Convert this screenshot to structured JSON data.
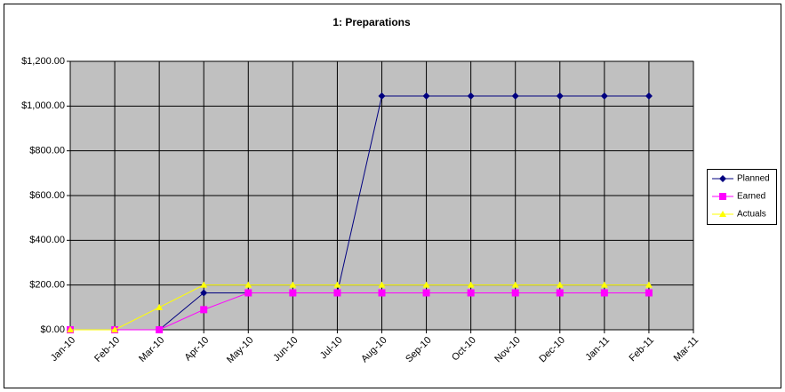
{
  "chart_data": {
    "type": "line",
    "title": "1: Preparations",
    "categories": [
      "Jan-10",
      "Feb-10",
      "Mar-10",
      "Apr-10",
      "May-10",
      "Jun-10",
      "Jul-10",
      "Aug-10",
      "Sep-10",
      "Oct-10",
      "Nov-10",
      "Dec-10",
      "Jan-11",
      "Feb-11",
      "Mar-11"
    ],
    "series": [
      {
        "name": "Planned",
        "color": "#000080",
        "marker": "diamond",
        "values": [
          0,
          0,
          0,
          165,
          165,
          165,
          165,
          1045,
          1045,
          1045,
          1045,
          1045,
          1045,
          1045,
          null
        ]
      },
      {
        "name": "Earned",
        "color": "#ff00ff",
        "marker": "square",
        "values": [
          0,
          0,
          0,
          90,
          165,
          165,
          165,
          165,
          165,
          165,
          165,
          165,
          165,
          165,
          null
        ]
      },
      {
        "name": "Actuals",
        "color": "#ffff00",
        "marker": "triangle",
        "values": [
          0,
          0,
          100,
          200,
          200,
          200,
          200,
          200,
          200,
          200,
          200,
          200,
          200,
          200,
          null
        ]
      }
    ],
    "ylim": [
      0,
      1200
    ],
    "yticks": [
      {
        "value": 0,
        "label": "$0.00"
      },
      {
        "value": 200,
        "label": "$200.00"
      },
      {
        "value": 400,
        "label": "$400.00"
      },
      {
        "value": 600,
        "label": "$600.00"
      },
      {
        "value": 800,
        "label": "$800.00"
      },
      {
        "value": 1000,
        "label": "$1,000.00"
      },
      {
        "value": 1200,
        "label": "$1,200.00"
      }
    ],
    "grid": true,
    "legend": "right",
    "plot_background": "#c0c0c0"
  }
}
